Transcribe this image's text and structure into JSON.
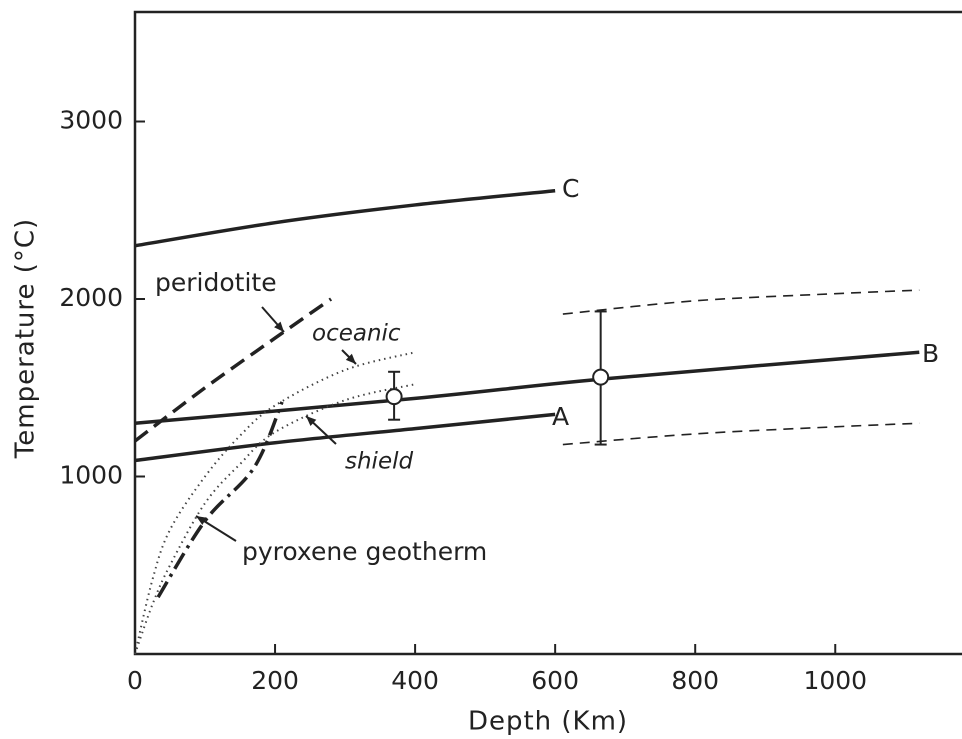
{
  "chart_data": {
    "type": "line",
    "x_label": "Depth (Km)",
    "y_label": "Temperature (°C)",
    "xlim": [
      0,
      1181
    ],
    "ylim": [
      0,
      3617
    ],
    "xticks": [
      0,
      200,
      400,
      600,
      800,
      1000
    ],
    "yticks": [
      1000,
      2000,
      3000
    ],
    "series": [
      {
        "name": "C",
        "style": "solid",
        "color": "#222",
        "x": [
          0,
          200,
          400,
          600
        ],
        "values": [
          2300,
          2430,
          2530,
          2610
        ]
      },
      {
        "name": "B",
        "style": "solid",
        "color": "#222",
        "x": [
          0,
          400,
          670,
          1120
        ],
        "values": [
          1300,
          1440,
          1550,
          1700
        ]
      },
      {
        "name": "A",
        "style": "solid",
        "color": "#222",
        "x": [
          0,
          200,
          400,
          600
        ],
        "values": [
          1090,
          1190,
          1270,
          1350
        ]
      },
      {
        "name": "peridotite",
        "style": "dashed",
        "color": "#222",
        "x": [
          0,
          100,
          200,
          280
        ],
        "values": [
          1200,
          1500,
          1780,
          2000
        ]
      },
      {
        "name": "oceanic",
        "style": "dotted",
        "color": "#444",
        "x": [
          0,
          25,
          50,
          100,
          150,
          200,
          300,
          400
        ],
        "values": [
          0,
          420,
          700,
          1000,
          1230,
          1400,
          1600,
          1700
        ]
      },
      {
        "name": "shield",
        "style": "dotted",
        "color": "#444",
        "x": [
          0,
          25,
          50,
          100,
          150,
          200,
          300,
          400
        ],
        "values": [
          0,
          280,
          500,
          850,
          1070,
          1250,
          1430,
          1520
        ]
      },
      {
        "name": "pyroxene geotherm",
        "style": "dashdot",
        "color": "#222",
        "x": [
          33,
          100,
          170,
          210
        ],
        "values": [
          320,
          750,
          1050,
          1420
        ]
      },
      {
        "style": "thin-dashed",
        "color": "#222",
        "x": [
          611,
          800,
          1000,
          1120
        ],
        "values": [
          1915,
          1990,
          2030,
          2050
        ]
      },
      {
        "style": "thin-dashed",
        "color": "#222",
        "x": [
          611,
          800,
          1000,
          1120
        ],
        "values": [
          1180,
          1240,
          1280,
          1300
        ]
      }
    ],
    "error_bars": {
      "x": [
        370,
        665
      ],
      "values": [
        1450,
        1560
      ],
      "lower": [
        1320,
        1180
      ],
      "upper": [
        1590,
        1930
      ]
    }
  }
}
